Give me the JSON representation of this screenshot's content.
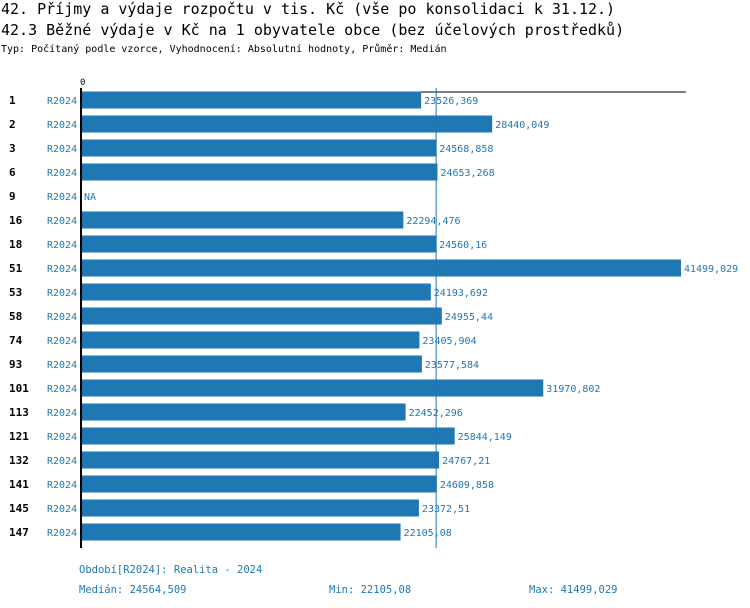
{
  "title": "42. Příjmy a výdaje rozpočtu v tis. Kč (vše po konsolidaci k 31.12.)",
  "subtitle": "42.3 Běžné výdaje v Kč na 1 obyvatele obce (bez účelových prostředků)",
  "info": "Typ: Počítaný podle vzorce, Vyhodnocení: Absolutní hodnoty, Průměr: Medián",
  "chart_data": {
    "type": "bar",
    "orientation": "horizontal",
    "bar_color": "#1f77b4",
    "axis_zero_label": "0",
    "categories": [
      "1",
      "2",
      "3",
      "6",
      "9",
      "16",
      "18",
      "51",
      "53",
      "58",
      "74",
      "93",
      "101",
      "113",
      "121",
      "132",
      "141",
      "145",
      "147"
    ],
    "period": "R2024",
    "values": [
      23526.369,
      28440.049,
      24568.858,
      24653.268,
      null,
      22294.476,
      24560.16,
      41499.029,
      24193.692,
      24955.44,
      23405.904,
      23577.584,
      31970.802,
      22452.296,
      25844.149,
      24767.21,
      24609.858,
      23372.51,
      22105.08
    ],
    "value_labels": [
      "23526,369",
      "28440,049",
      "24568,858",
      "24653,268",
      "NA",
      "22294,476",
      "24560,16",
      "41499,029",
      "24193,692",
      "24955,44",
      "23405,904",
      "23577,584",
      "31970,802",
      "22452,296",
      "25844,149",
      "24767,21",
      "24609,858",
      "23372,51",
      "22105,08"
    ],
    "median": 24564.509
  },
  "footer": {
    "period": "Období[R2024]: Realita - 2024",
    "median": "Medián: 24564,509",
    "min": "Min: 22105,08",
    "max": "Max: 41499,029"
  }
}
